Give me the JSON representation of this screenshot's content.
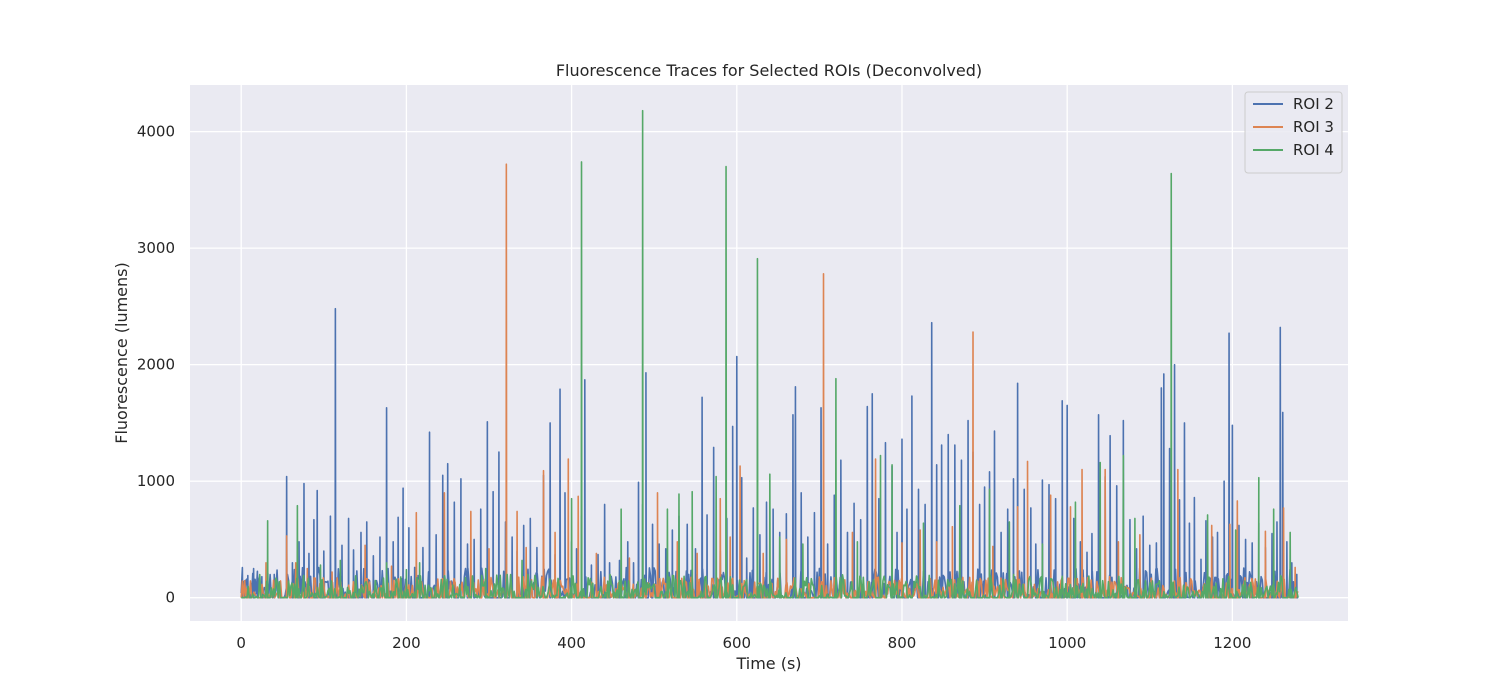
{
  "chart_data": {
    "type": "line",
    "title": "Fluorescence Traces for Selected ROIs (Deconvolved)",
    "xlabel": "Time (s)",
    "ylabel": "Fluorescence (lumens)",
    "xlim": [
      -62,
      1340
    ],
    "ylim": [
      -200,
      4400
    ],
    "xticks": [
      0,
      200,
      400,
      600,
      800,
      1000,
      1200
    ],
    "yticks": [
      0,
      1000,
      2000,
      3000,
      4000
    ],
    "grid": true,
    "legend_position": "top-right",
    "series": [
      {
        "name": "ROI 2",
        "color": "#4c72b0",
        "peaks": [
          [
            2,
            100
          ],
          [
            8,
            190
          ],
          [
            12,
            120
          ],
          [
            15,
            250
          ],
          [
            20,
            170
          ],
          [
            25,
            180
          ],
          [
            32,
            120
          ],
          [
            40,
            200
          ],
          [
            55,
            1040
          ],
          [
            62,
            300
          ],
          [
            70,
            480
          ],
          [
            76,
            980
          ],
          [
            82,
            380
          ],
          [
            88,
            670
          ],
          [
            92,
            920
          ],
          [
            100,
            400
          ],
          [
            108,
            700
          ],
          [
            114,
            2480
          ],
          [
            122,
            450
          ],
          [
            130,
            680
          ],
          [
            136,
            410
          ],
          [
            145,
            560
          ],
          [
            152,
            650
          ],
          [
            160,
            360
          ],
          [
            168,
            520
          ],
          [
            176,
            1630
          ],
          [
            184,
            480
          ],
          [
            190,
            690
          ],
          [
            196,
            940
          ],
          [
            203,
            600
          ],
          [
            210,
            260
          ],
          [
            220,
            430
          ],
          [
            228,
            1420
          ],
          [
            236,
            540
          ],
          [
            244,
            1050
          ],
          [
            250,
            1150
          ],
          [
            258,
            820
          ],
          [
            266,
            1020
          ],
          [
            274,
            460
          ],
          [
            282,
            500
          ],
          [
            290,
            760
          ],
          [
            298,
            1510
          ],
          [
            305,
            910
          ],
          [
            312,
            1250
          ],
          [
            320,
            650
          ],
          [
            328,
            520
          ],
          [
            334,
            400
          ],
          [
            342,
            620
          ],
          [
            350,
            680
          ],
          [
            358,
            430
          ],
          [
            366,
            1050
          ],
          [
            374,
            1500
          ],
          [
            380,
            370
          ],
          [
            386,
            1790
          ],
          [
            392,
            900
          ],
          [
            400,
            480
          ],
          [
            406,
            420
          ],
          [
            412,
            700
          ],
          [
            416,
            1870
          ],
          [
            424,
            280
          ],
          [
            432,
            370
          ],
          [
            440,
            800
          ],
          [
            446,
            300
          ],
          [
            458,
            320
          ],
          [
            468,
            480
          ],
          [
            475,
            300
          ],
          [
            481,
            990
          ],
          [
            486,
            800
          ],
          [
            490,
            1930
          ],
          [
            498,
            630
          ],
          [
            506,
            460
          ],
          [
            514,
            420
          ],
          [
            522,
            580
          ],
          [
            530,
            700
          ],
          [
            540,
            630
          ],
          [
            550,
            420
          ],
          [
            558,
            1720
          ],
          [
            564,
            710
          ],
          [
            572,
            1290
          ],
          [
            580,
            400
          ],
          [
            588,
            680
          ],
          [
            595,
            1470
          ],
          [
            600,
            2070
          ],
          [
            606,
            1030
          ],
          [
            612,
            340
          ],
          [
            620,
            770
          ],
          [
            628,
            540
          ],
          [
            636,
            820
          ],
          [
            644,
            760
          ],
          [
            652,
            560
          ],
          [
            660,
            720
          ],
          [
            668,
            1570
          ],
          [
            671,
            1810
          ],
          [
            678,
            900
          ],
          [
            686,
            520
          ],
          [
            694,
            730
          ],
          [
            702,
            1630
          ],
          [
            710,
            460
          ],
          [
            718,
            880
          ],
          [
            726,
            1180
          ],
          [
            734,
            560
          ],
          [
            742,
            810
          ],
          [
            750,
            670
          ],
          [
            758,
            1640
          ],
          [
            764,
            1750
          ],
          [
            772,
            850
          ],
          [
            780,
            1330
          ],
          [
            788,
            1130
          ],
          [
            794,
            560
          ],
          [
            800,
            1360
          ],
          [
            806,
            760
          ],
          [
            812,
            1730
          ],
          [
            820,
            930
          ],
          [
            828,
            800
          ],
          [
            836,
            2360
          ],
          [
            842,
            1140
          ],
          [
            848,
            1310
          ],
          [
            856,
            1400
          ],
          [
            864,
            1310
          ],
          [
            872,
            1180
          ],
          [
            880,
            1520
          ],
          [
            886,
            1250
          ],
          [
            894,
            800
          ],
          [
            900,
            950
          ],
          [
            906,
            1080
          ],
          [
            912,
            1430
          ],
          [
            920,
            560
          ],
          [
            928,
            760
          ],
          [
            935,
            1020
          ],
          [
            940,
            1840
          ],
          [
            948,
            930
          ],
          [
            956,
            770
          ],
          [
            962,
            460
          ],
          [
            970,
            1010
          ],
          [
            978,
            970
          ],
          [
            986,
            850
          ],
          [
            994,
            1690
          ],
          [
            1000,
            1650
          ],
          [
            1008,
            680
          ],
          [
            1016,
            480
          ],
          [
            1024,
            390
          ],
          [
            1030,
            550
          ],
          [
            1038,
            1570
          ],
          [
            1046,
            1040
          ],
          [
            1052,
            1390
          ],
          [
            1060,
            960
          ],
          [
            1068,
            1520
          ],
          [
            1076,
            670
          ],
          [
            1084,
            420
          ],
          [
            1092,
            700
          ],
          [
            1100,
            450
          ],
          [
            1108,
            470
          ],
          [
            1114,
            1800
          ],
          [
            1117,
            1920
          ],
          [
            1124,
            1280
          ],
          [
            1130,
            2000
          ],
          [
            1136,
            840
          ],
          [
            1142,
            1500
          ],
          [
            1148,
            640
          ],
          [
            1154,
            860
          ],
          [
            1162,
            330
          ],
          [
            1168,
            660
          ],
          [
            1176,
            520
          ],
          [
            1182,
            560
          ],
          [
            1190,
            1000
          ],
          [
            1196,
            2270
          ],
          [
            1200,
            1480
          ],
          [
            1208,
            620
          ],
          [
            1216,
            500
          ],
          [
            1224,
            470
          ],
          [
            1232,
            640
          ],
          [
            1240,
            430
          ],
          [
            1248,
            550
          ],
          [
            1254,
            650
          ],
          [
            1258,
            2320
          ],
          [
            1261,
            1590
          ],
          [
            1266,
            480
          ],
          [
            1272,
            300
          ],
          [
            1278,
            200
          ]
        ]
      },
      {
        "name": "ROI 3",
        "color": "#dd8452",
        "peaks": [
          [
            6,
            80
          ],
          [
            30,
            300
          ],
          [
            55,
            530
          ],
          [
            66,
            300
          ],
          [
            80,
            250
          ],
          [
            110,
            220
          ],
          [
            150,
            450
          ],
          [
            182,
            270
          ],
          [
            212,
            730
          ],
          [
            246,
            900
          ],
          [
            278,
            740
          ],
          [
            300,
            420
          ],
          [
            321,
            3720
          ],
          [
            334,
            740
          ],
          [
            345,
            430
          ],
          [
            366,
            1090
          ],
          [
            380,
            560
          ],
          [
            396,
            1190
          ],
          [
            408,
            870
          ],
          [
            430,
            380
          ],
          [
            470,
            340
          ],
          [
            504,
            900
          ],
          [
            528,
            480
          ],
          [
            552,
            380
          ],
          [
            580,
            850
          ],
          [
            592,
            520
          ],
          [
            604,
            1130
          ],
          [
            632,
            380
          ],
          [
            660,
            500
          ],
          [
            705,
            2780
          ],
          [
            740,
            560
          ],
          [
            768,
            1190
          ],
          [
            800,
            470
          ],
          [
            822,
            580
          ],
          [
            842,
            480
          ],
          [
            861,
            610
          ],
          [
            886,
            2280
          ],
          [
            910,
            440
          ],
          [
            940,
            780
          ],
          [
            952,
            1170
          ],
          [
            980,
            880
          ],
          [
            1004,
            780
          ],
          [
            1018,
            1100
          ],
          [
            1046,
            1100
          ],
          [
            1062,
            480
          ],
          [
            1088,
            540
          ],
          [
            1134,
            1100
          ],
          [
            1175,
            620
          ],
          [
            1197,
            630
          ],
          [
            1206,
            830
          ],
          [
            1240,
            570
          ],
          [
            1262,
            770
          ],
          [
            1276,
            260
          ]
        ]
      },
      {
        "name": "ROI 4",
        "color": "#55a868",
        "peaks": [
          [
            32,
            660
          ],
          [
            68,
            790
          ],
          [
            96,
            280
          ],
          [
            120,
            320
          ],
          [
            176,
            300
          ],
          [
            200,
            240
          ],
          [
            216,
            300
          ],
          [
            296,
            250
          ],
          [
            340,
            320
          ],
          [
            400,
            850
          ],
          [
            412,
            3740
          ],
          [
            460,
            760
          ],
          [
            486,
            4180
          ],
          [
            516,
            760
          ],
          [
            530,
            890
          ],
          [
            546,
            910
          ],
          [
            575,
            1040
          ],
          [
            587,
            3700
          ],
          [
            625,
            2910
          ],
          [
            640,
            1060
          ],
          [
            652,
            520
          ],
          [
            680,
            460
          ],
          [
            720,
            1880
          ],
          [
            746,
            480
          ],
          [
            774,
            1220
          ],
          [
            788,
            1140
          ],
          [
            826,
            640
          ],
          [
            870,
            790
          ],
          [
            906,
            930
          ],
          [
            930,
            650
          ],
          [
            970,
            460
          ],
          [
            1010,
            820
          ],
          [
            1040,
            1160
          ],
          [
            1068,
            1220
          ],
          [
            1082,
            680
          ],
          [
            1126,
            3640
          ],
          [
            1170,
            710
          ],
          [
            1204,
            580
          ],
          [
            1232,
            1030
          ],
          [
            1250,
            760
          ],
          [
            1270,
            560
          ]
        ]
      }
    ]
  }
}
